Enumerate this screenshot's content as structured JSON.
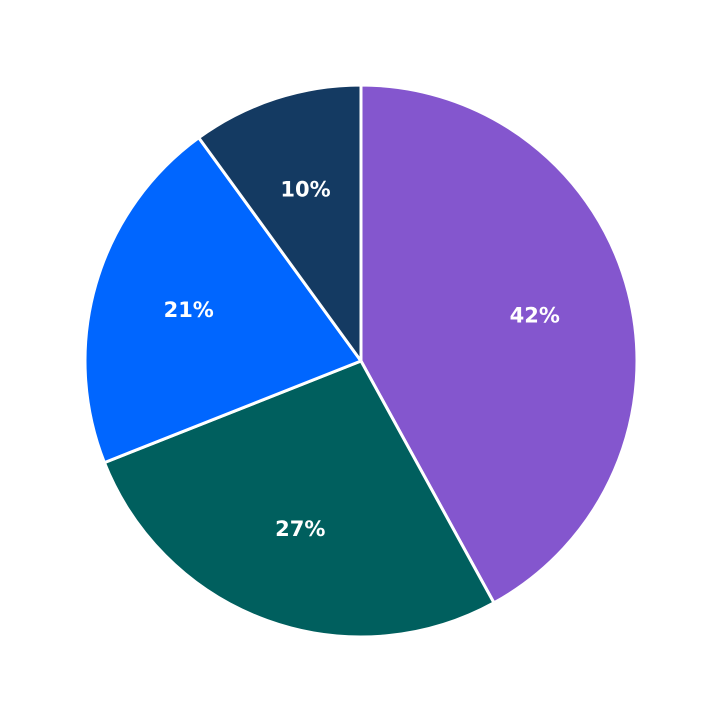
{
  "chart_data": {
    "type": "pie",
    "values": [
      42,
      27,
      21,
      10
    ],
    "value_labels": [
      "42%",
      "27%",
      "21%",
      "10%"
    ],
    "colors": [
      "#8456ce",
      "#005f5e",
      "#0066ff",
      "#143a62"
    ],
    "start_angle": "top",
    "direction": "clockwise"
  }
}
